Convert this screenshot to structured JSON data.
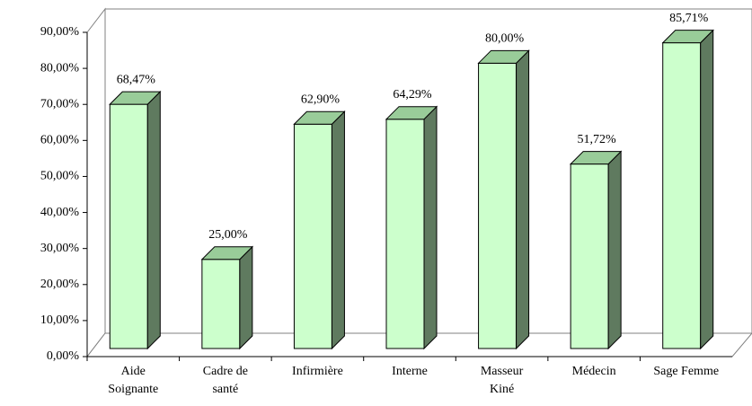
{
  "chart_data": {
    "type": "bar3d",
    "categories": [
      "Aide Soignante",
      "Cadre de santé",
      "Infirmière",
      "Interne",
      "Masseur Kiné",
      "Médecin",
      "Sage Femme"
    ],
    "values": [
      68.47,
      25,
      62.9,
      64.29,
      80,
      51.72,
      85.71
    ],
    "value_labels": [
      "68,47%",
      "25,00%",
      "62,90%",
      "64,29%",
      "80,00%",
      "51,72%",
      "85,71%"
    ],
    "color": "#ccffcc",
    "ylim": [
      0,
      90
    ],
    "yticks": [
      {
        "value": 0,
        "label": "0,00%"
      },
      {
        "value": 10,
        "label": "10,00%"
      },
      {
        "value": 20,
        "label": "20,00%"
      },
      {
        "value": 30,
        "label": "30,00%"
      },
      {
        "value": 40,
        "label": "40,00%"
      },
      {
        "value": 50,
        "label": "50,00%"
      },
      {
        "value": 60,
        "label": "60,00%"
      },
      {
        "value": 70,
        "label": "70,00%"
      },
      {
        "value": 80,
        "label": "80,00%"
      },
      {
        "value": 90,
        "label": "90,00%"
      }
    ]
  }
}
